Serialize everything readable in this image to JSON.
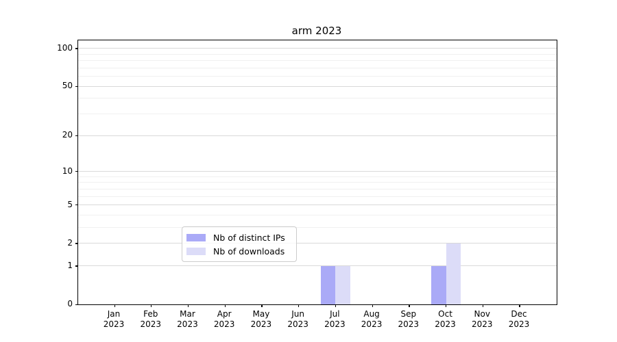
{
  "chart_data": {
    "type": "bar",
    "title": "arm 2023",
    "categories": [
      "Jan",
      "Feb",
      "Mar",
      "Apr",
      "May",
      "Jun",
      "Jul",
      "Aug",
      "Sep",
      "Oct",
      "Nov",
      "Dec"
    ],
    "category_year": "2023",
    "series": [
      {
        "name": "Nb of distinct IPs",
        "color": "#aaaaf7",
        "values": [
          0,
          0,
          0,
          0,
          0,
          0,
          1,
          0,
          0,
          1,
          0,
          0
        ]
      },
      {
        "name": "Nb of downloads",
        "color": "#dcdcf8",
        "values": [
          0,
          0,
          0,
          0,
          0,
          0,
          1,
          0,
          0,
          2,
          0,
          0
        ]
      }
    ],
    "xlabel": "",
    "ylabel": "",
    "y_scale": "log10(value+1)",
    "y_major_ticks": [
      0,
      1,
      2,
      5,
      10,
      20,
      50,
      100
    ],
    "y_minor_ticks": [
      3,
      4,
      6,
      7,
      8,
      9,
      30,
      40,
      60,
      70,
      80,
      90
    ],
    "ylim": [
      0,
      116
    ],
    "grid": true,
    "legend_position": "lower center",
    "colors": {
      "major_grid": "#d9d9d9",
      "minor_grid": "#f0f0f0",
      "axis": "#000000",
      "legend_border": "#cccccc"
    }
  }
}
